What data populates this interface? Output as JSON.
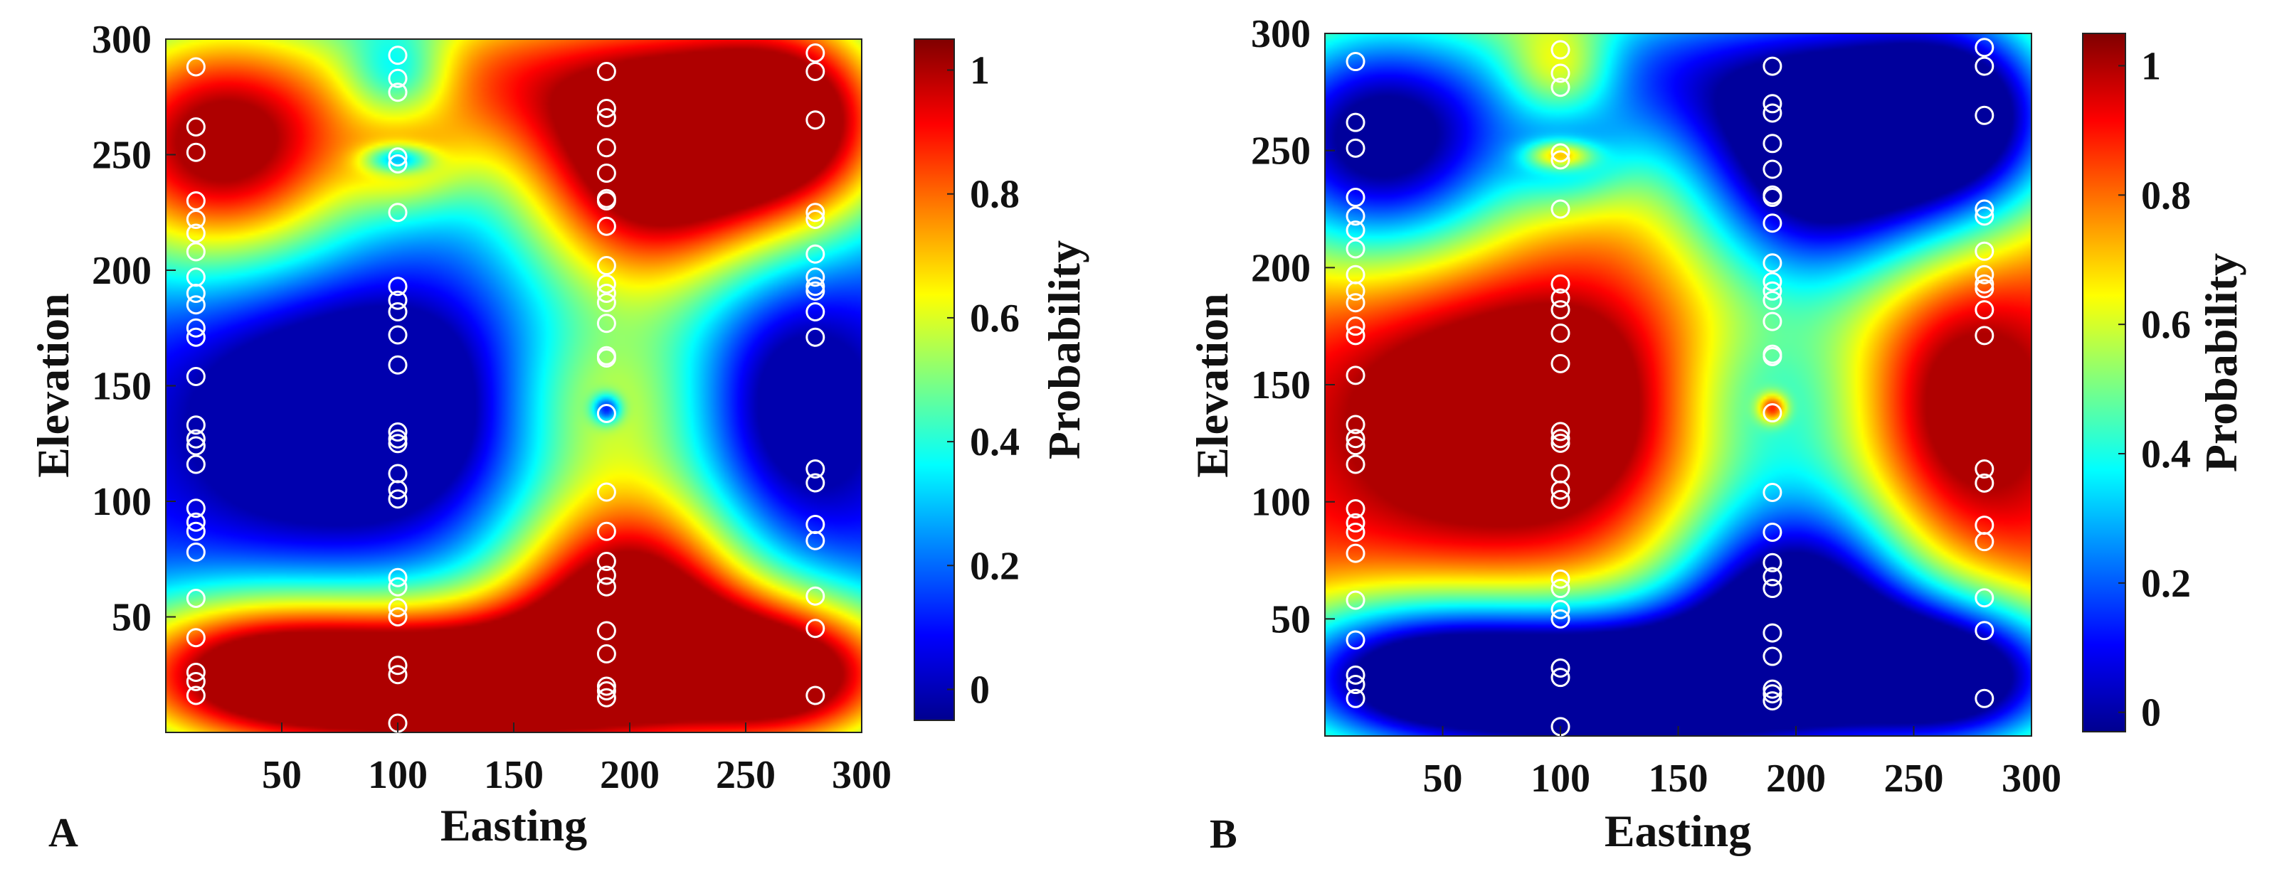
{
  "chart_data": [
    {
      "type": "heatmap",
      "panel_label": "A",
      "xlabel": "Easting",
      "ylabel": "Elevation",
      "xlim": [
        0,
        300
      ],
      "ylim": [
        0,
        300
      ],
      "xticks": [
        50,
        100,
        150,
        200,
        250,
        300
      ],
      "yticks": [
        50,
        100,
        150,
        200,
        250,
        300
      ],
      "colorbar": {
        "label": "Probability",
        "range": [
          -0.05,
          1.05
        ],
        "ticks": [
          0,
          0.2,
          0.4,
          0.6,
          0.8,
          1
        ],
        "tick_labels": [
          "0",
          "0.2",
          "0.4",
          "0.6",
          "0.8",
          "1"
        ]
      },
      "field": "A",
      "colormap": "jet",
      "samples_marker": "open white circle",
      "samples": [
        {
          "easting": 13,
          "elevations": [
            288,
            262,
            251,
            230,
            222,
            216,
            208,
            197,
            190,
            185,
            175,
            171,
            154,
            133,
            127,
            124,
            116,
            97,
            91,
            87,
            78,
            58,
            41,
            26,
            22,
            16
          ]
        },
        {
          "easting": 100,
          "elevations": [
            293,
            283,
            277,
            249,
            246,
            225,
            193,
            187,
            182,
            172,
            159,
            130,
            127,
            125,
            112,
            105,
            101,
            67,
            63,
            54,
            50,
            29,
            25,
            4
          ]
        },
        {
          "easting": 190,
          "elevations": [
            286,
            270,
            266,
            253,
            242,
            231,
            230,
            219,
            202,
            194,
            190,
            186,
            177,
            163,
            162,
            138,
            104,
            87,
            74,
            68,
            63,
            44,
            34,
            20,
            18,
            15
          ]
        },
        {
          "easting": 280,
          "elevations": [
            294,
            286,
            265,
            225,
            222,
            207,
            197,
            193,
            191,
            182,
            171,
            114,
            108,
            90,
            83,
            59,
            45,
            16
          ]
        }
      ]
    },
    {
      "type": "heatmap",
      "panel_label": "B",
      "xlabel": "Easting",
      "ylabel": "Elevation",
      "xlim": [
        0,
        300
      ],
      "ylim": [
        0,
        300
      ],
      "xticks": [
        50,
        100,
        150,
        200,
        250,
        300
      ],
      "yticks": [
        50,
        100,
        150,
        200,
        250,
        300
      ],
      "colorbar": {
        "label": "Probability",
        "range": [
          -0.03,
          1.05
        ],
        "ticks": [
          0,
          0.2,
          0.4,
          0.6,
          0.8,
          1
        ],
        "tick_labels": [
          "0",
          "0.2",
          "0.4",
          "0.6",
          "0.8",
          "1"
        ]
      },
      "field": "1 - A",
      "colormap": "jet",
      "samples_marker": "open white circle",
      "samples": [
        {
          "easting": 13,
          "elevations": [
            288,
            262,
            251,
            230,
            222,
            216,
            208,
            197,
            190,
            185,
            175,
            171,
            154,
            133,
            127,
            124,
            116,
            97,
            91,
            87,
            78,
            58,
            41,
            26,
            22,
            16
          ]
        },
        {
          "easting": 100,
          "elevations": [
            293,
            283,
            277,
            249,
            246,
            225,
            193,
            187,
            182,
            172,
            159,
            130,
            127,
            125,
            112,
            105,
            101,
            67,
            63,
            54,
            50,
            29,
            25,
            4
          ]
        },
        {
          "easting": 190,
          "elevations": [
            286,
            270,
            266,
            253,
            242,
            231,
            230,
            219,
            202,
            194,
            190,
            186,
            177,
            163,
            162,
            138,
            104,
            87,
            74,
            68,
            63,
            44,
            34,
            20,
            18,
            15
          ]
        },
        {
          "easting": 280,
          "elevations": [
            294,
            286,
            265,
            225,
            222,
            207,
            197,
            193,
            191,
            182,
            171,
            114,
            108,
            90,
            83,
            59,
            45,
            16
          ]
        }
      ]
    }
  ]
}
